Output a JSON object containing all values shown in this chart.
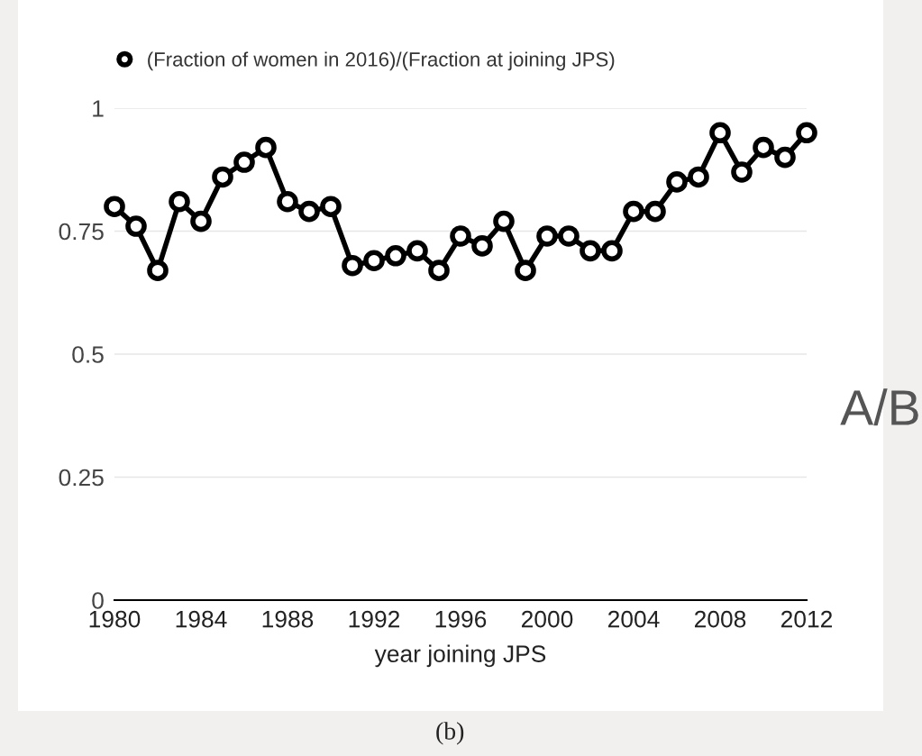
{
  "chart_data": {
    "type": "line",
    "xlabel": "year joining JPS",
    "x": [
      1980,
      1981,
      1982,
      1983,
      1984,
      1985,
      1986,
      1987,
      1988,
      1989,
      1990,
      1991,
      1992,
      1993,
      1994,
      1995,
      1996,
      1997,
      1998,
      1999,
      2000,
      2001,
      2002,
      2003,
      2004,
      2005,
      2006,
      2007,
      2008,
      2009,
      2010,
      2011,
      2012
    ],
    "series": [
      {
        "name": "(Fraction of women in 2016)/(Fraction at joining JPS)",
        "color": "#000000",
        "values": [
          0.8,
          0.76,
          0.67,
          0.81,
          0.77,
          0.86,
          0.89,
          0.92,
          0.81,
          0.79,
          0.8,
          0.68,
          0.69,
          0.7,
          0.71,
          0.67,
          0.74,
          0.72,
          0.77,
          0.67,
          0.74,
          0.74,
          0.71,
          0.71,
          0.79,
          0.79,
          0.85,
          0.86,
          0.95,
          0.87,
          0.92,
          0.9,
          0.95
        ]
      }
    ],
    "xlim": [
      1980,
      2012
    ],
    "xticks": [
      1980,
      1984,
      1988,
      1992,
      1996,
      2000,
      2004,
      2008,
      2012
    ],
    "ylim": [
      0,
      1
    ],
    "yticks": [
      0,
      0.25,
      0.5,
      0.75,
      1
    ],
    "grid": "y",
    "legend": "top",
    "marker": "circle",
    "line_style": "solid",
    "annotations": [
      "A/B",
      "(b)"
    ]
  }
}
